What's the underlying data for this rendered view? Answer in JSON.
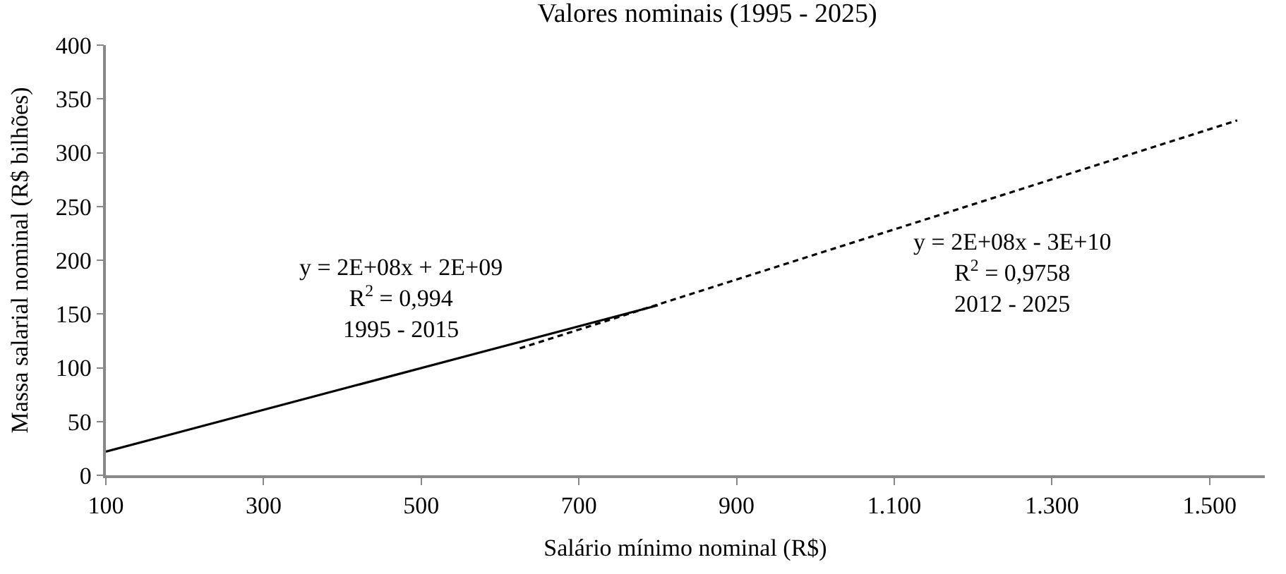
{
  "chart_data": {
    "type": "line",
    "title": "Valores nominais (1995 - 2025)",
    "xlabel": "Salário mínimo nominal (R$)",
    "ylabel": "Massa salarial nominal (R$ bilhões)",
    "series": [
      {
        "color": "#000000",
        "x": [
          100,
          800
        ],
        "values": [
          22,
          158
        ],
        "line_style": "solid"
      },
      {
        "color": "#000000",
        "x": [
          625,
          1535
        ],
        "values": [
          118,
          330
        ],
        "line_style": "dashed"
      }
    ],
    "xlim": [
      100,
      1570
    ],
    "ylim": [
      0,
      400
    ],
    "xticks": [
      100,
      300,
      500,
      700,
      900,
      {
        "value": 1100,
        "label": "1.100"
      },
      {
        "value": 1300,
        "label": "1.300"
      },
      {
        "value": 1500,
        "label": "1.500"
      }
    ],
    "yticks": [
      0,
      50,
      100,
      150,
      200,
      250,
      300,
      350,
      400
    ],
    "annotations": [
      "y = 2E+08x + 2E+09\nR$^{2}$ = 0,994\n1995 - 2015",
      "y = 2E+08x - 3E+10\nR$^{2}$ = 0,9758\n2012 - 2025"
    ]
  }
}
